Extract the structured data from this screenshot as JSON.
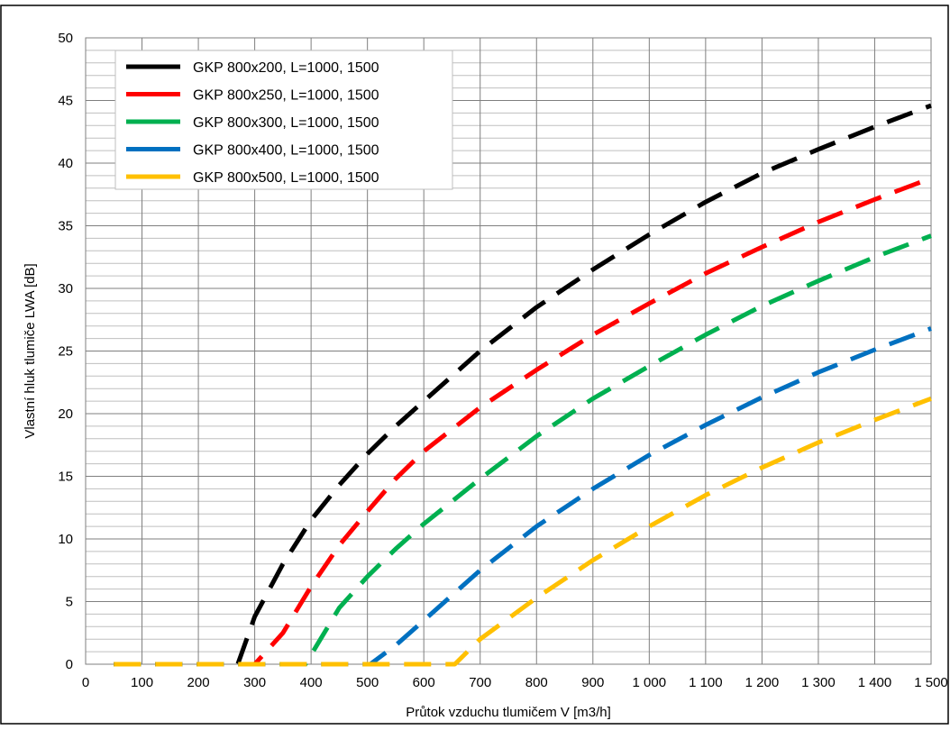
{
  "chart_data": {
    "type": "line",
    "xlabel": "Průtok vzduchu tlumičem V [m3/h]",
    "ylabel": "Vlastní hluk tlumiče LWA [dB]",
    "xlim": [
      0,
      1500
    ],
    "ylim": [
      0,
      50
    ],
    "x_ticks": [
      {
        "value": 0,
        "label": "0"
      },
      {
        "value": 100,
        "label": "100"
      },
      {
        "value": 200,
        "label": "200"
      },
      {
        "value": 300,
        "label": "300"
      },
      {
        "value": 400,
        "label": "400"
      },
      {
        "value": 500,
        "label": "500"
      },
      {
        "value": 600,
        "label": "600"
      },
      {
        "value": 700,
        "label": "700"
      },
      {
        "value": 800,
        "label": "800"
      },
      {
        "value": 900,
        "label": "900"
      },
      {
        "value": 1000,
        "label": "1 000"
      },
      {
        "value": 1100,
        "label": "1 100"
      },
      {
        "value": 1200,
        "label": "1 200"
      },
      {
        "value": 1300,
        "label": "1 300"
      },
      {
        "value": 1400,
        "label": "1 400"
      },
      {
        "value": 1500,
        "label": "1 500"
      }
    ],
    "y_ticks": [
      {
        "value": 0,
        "label": "0"
      },
      {
        "value": 5,
        "label": "5"
      },
      {
        "value": 10,
        "label": "10"
      },
      {
        "value": 15,
        "label": "15"
      },
      {
        "value": 20,
        "label": "20"
      },
      {
        "value": 25,
        "label": "25"
      },
      {
        "value": 30,
        "label": "30"
      },
      {
        "value": 35,
        "label": "35"
      },
      {
        "value": 40,
        "label": "40"
      },
      {
        "value": 45,
        "label": "45"
      },
      {
        "value": 50,
        "label": "50"
      }
    ],
    "grid": {
      "major": true,
      "minor_y_step": 1
    },
    "legend_position": "top-left",
    "series": [
      {
        "name": "GKP 800x200, L=1000, 1500",
        "color": "#000000",
        "x": [
          50,
          270,
          300,
          350,
          400,
          450,
          500,
          550,
          600,
          700,
          800,
          900,
          1000,
          1100,
          1200,
          1300,
          1400,
          1500
        ],
        "y": [
          0,
          0,
          3.8,
          8.0,
          11.5,
          14.3,
          16.8,
          19.0,
          21.0,
          25.0,
          28.5,
          31.5,
          34.3,
          36.9,
          39.2,
          41.1,
          42.9,
          44.6
        ]
      },
      {
        "name": "GKP 800x250, L=1000, 1500",
        "color": "#ff0000",
        "x": [
          50,
          300,
          350,
          400,
          450,
          500,
          550,
          600,
          700,
          800,
          900,
          1000,
          1100,
          1200,
          1300,
          1400,
          1500
        ],
        "y": [
          0,
          0,
          2.5,
          6.2,
          9.5,
          12.2,
          14.8,
          17.0,
          20.5,
          23.5,
          26.3,
          28.8,
          31.2,
          33.3,
          35.3,
          37.1,
          38.8
        ]
      },
      {
        "name": "GKP 800x300, L=1000, 1500",
        "color": "#00b050",
        "x": [
          50,
          390,
          450,
          500,
          550,
          600,
          650,
          700,
          800,
          900,
          1000,
          1100,
          1200,
          1300,
          1400,
          1500
        ],
        "y": [
          0,
          0,
          4.5,
          7.0,
          9.2,
          11.2,
          13.0,
          14.8,
          18.2,
          21.2,
          23.8,
          26.3,
          28.6,
          30.6,
          32.5,
          34.2
        ]
      },
      {
        "name": "GKP 800x400, L=1000, 1500",
        "color": "#0070c0",
        "x": [
          50,
          505,
          550,
          600,
          700,
          800,
          900,
          1000,
          1100,
          1200,
          1300,
          1400,
          1500
        ],
        "y": [
          0,
          0,
          1.5,
          3.5,
          7.5,
          11.0,
          14.0,
          16.7,
          19.1,
          21.3,
          23.3,
          25.1,
          26.8
        ]
      },
      {
        "name": "GKP 800x500, L=1000, 1500",
        "color": "#ffc000",
        "x": [
          50,
          655,
          700,
          800,
          900,
          1000,
          1100,
          1200,
          1300,
          1400,
          1500
        ],
        "y": [
          0,
          0,
          2.0,
          5.3,
          8.3,
          11.0,
          13.5,
          15.7,
          17.7,
          19.5,
          21.2
        ]
      }
    ]
  }
}
